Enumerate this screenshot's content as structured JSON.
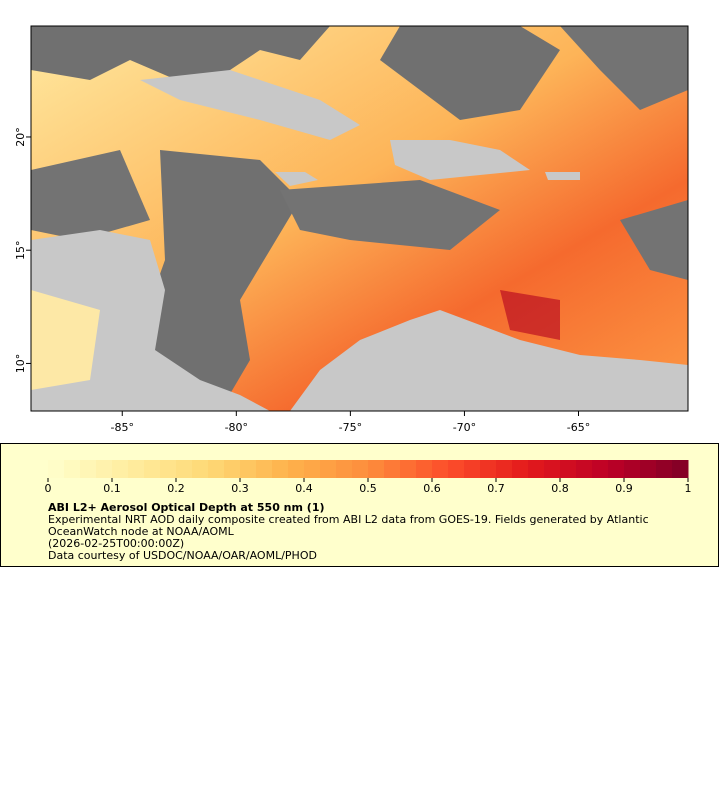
{
  "map": {
    "xlim": [
      -89,
      -60.2
    ],
    "ylim": [
      7.9,
      24.9
    ],
    "xticks": [
      {
        "value": -85,
        "label": "-85°"
      },
      {
        "value": -80,
        "label": "-80°"
      },
      {
        "value": -75,
        "label": "-75°"
      },
      {
        "value": -70,
        "label": "-70°"
      },
      {
        "value": -65,
        "label": "-65°"
      }
    ],
    "yticks": [
      {
        "value": 10,
        "label": "10°"
      },
      {
        "value": 15,
        "label": "15°"
      },
      {
        "value": 20,
        "label": "20°"
      }
    ]
  },
  "colorbar": {
    "range": [
      0,
      1
    ],
    "ticks": [
      0,
      0.1,
      0.2,
      0.3,
      0.4,
      0.5,
      0.6,
      0.7,
      0.8,
      0.9,
      1
    ],
    "colors": [
      "#ffffcc",
      "#ffeda0",
      "#fed976",
      "#feb24c",
      "#fd8d3c",
      "#fc4e2a",
      "#e31a1c",
      "#bd0026",
      "#800026"
    ],
    "segments": 40
  },
  "legend": {
    "title": "ABI L2+ Aerosol Optical Depth at 550 nm (1)",
    "lines": [
      "Experimental NRT AOD daily composite created from ABI L2 data from GOES-19. Fields generated by Atlantic",
      "OceanWatch node at NOAA/AOML",
      "(2026-02-25T00:00:00Z)",
      "Data courtesy of USDOC/NOAA/OAR/AOML/PHOD"
    ]
  }
}
